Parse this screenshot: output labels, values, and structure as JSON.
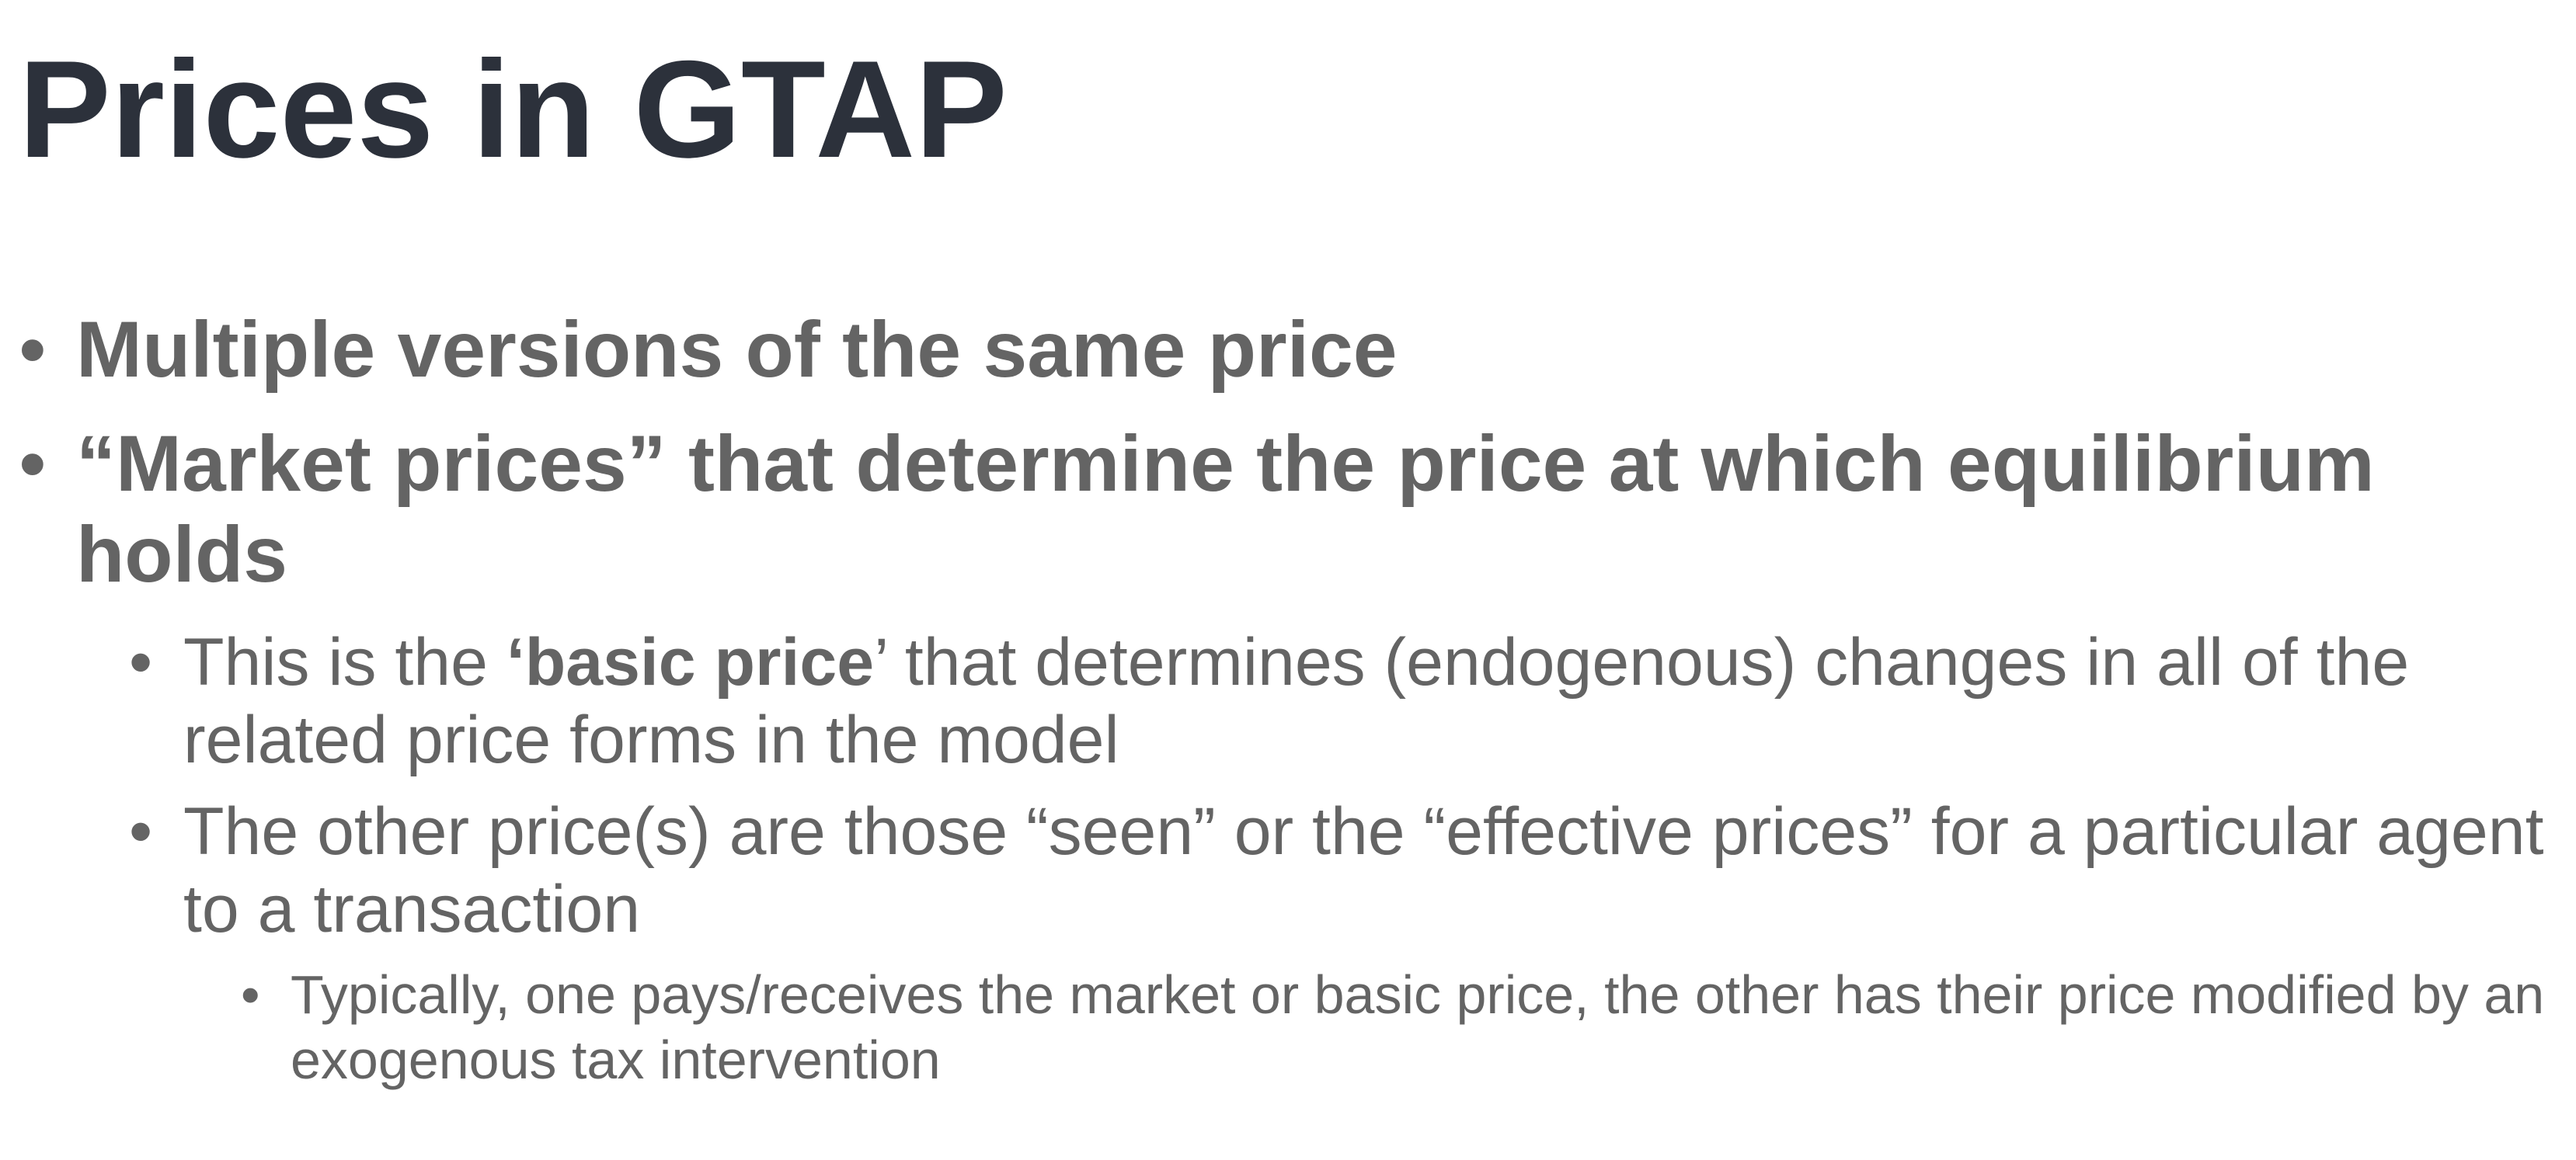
{
  "slide": {
    "title": "Prices in GTAP",
    "bullet_glyph": "•",
    "items": [
      {
        "level": 1,
        "text": "Multiple versions of the same price"
      },
      {
        "level": 1,
        "text": "“Market prices” that determine the price at which equilibrium holds"
      },
      {
        "level": 2,
        "pre": "This is the ",
        "bold": "‘basic price",
        "post": "’ that determines (endogenous) changes in all of the related price forms in the model"
      },
      {
        "level": 2,
        "text": "The other price(s) are those “seen” or the “effective prices” for a particular agent to a transaction"
      },
      {
        "level": 3,
        "text": "Typically, one pays/receives the market or basic price, the other has their price modified by an exogenous tax intervention"
      }
    ]
  },
  "colors": {
    "title": "#2c313b",
    "body": "#646464",
    "background": "#ffffff"
  }
}
